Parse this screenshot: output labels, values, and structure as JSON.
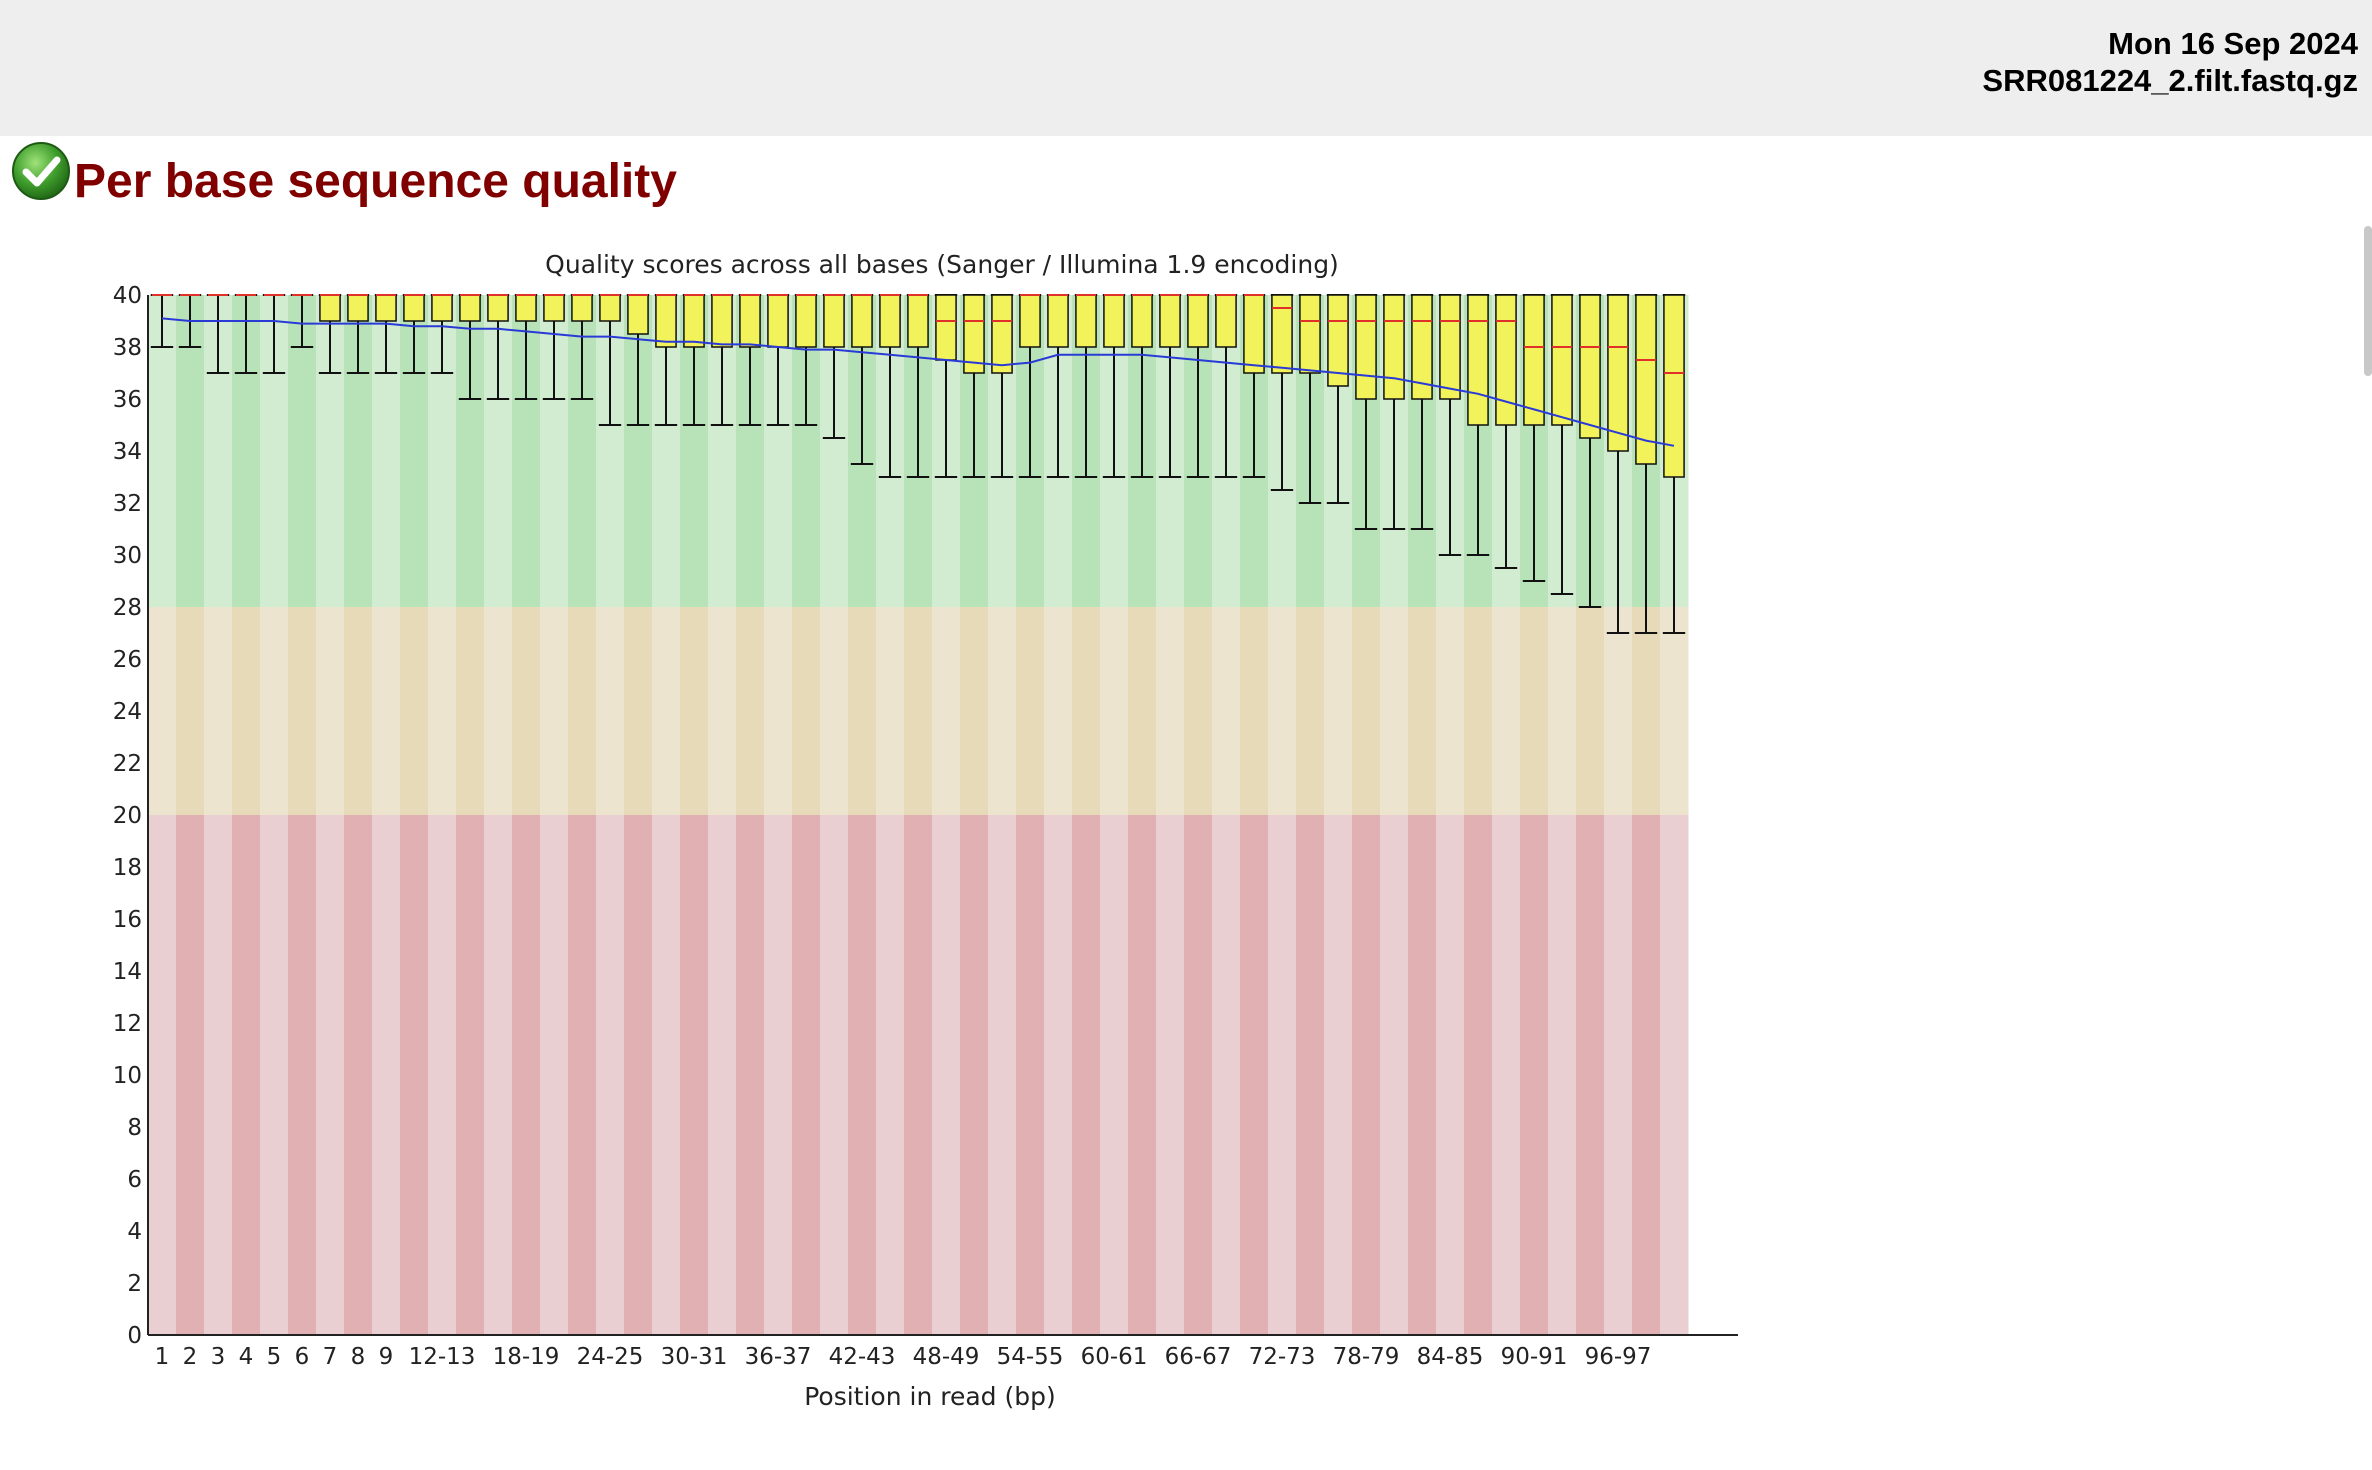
{
  "header": {
    "date": "Mon 16 Sep 2024",
    "filename": "SRR081224_2.filt.fastq.gz"
  },
  "module": {
    "title": "Per base sequence quality",
    "status_icon": "pass-check-icon"
  },
  "colors": {
    "header_bg": "#eeeeee",
    "title": "#800000",
    "zone_good": "#b8e3b8",
    "zone_good_alt": "#d1ecd1",
    "zone_warn": "#e6dab8",
    "zone_warn_alt": "#ece4cf",
    "zone_bad": "#e0b0b2",
    "zone_bad_alt": "#e9cfd1",
    "box_fill": "#f2f25a",
    "median": "#e0302a",
    "mean_line": "#2a3ad6"
  },
  "chart_data": {
    "type": "box",
    "title": "Quality scores across all bases (Sanger / Illumina 1.9 encoding)",
    "xlabel": "Position in read (bp)",
    "ylabel": "",
    "ylim": [
      0,
      40
    ],
    "yticks": [
      0,
      2,
      4,
      6,
      8,
      10,
      12,
      14,
      16,
      18,
      20,
      22,
      24,
      26,
      28,
      30,
      32,
      34,
      36,
      38,
      40
    ],
    "zones": {
      "good": [
        28,
        40
      ],
      "warn": [
        20,
        28
      ],
      "bad": [
        0,
        20
      ]
    },
    "categories": [
      "1",
      "2",
      "3",
      "4",
      "5",
      "6",
      "7",
      "8",
      "9",
      "10-11",
      "12-13",
      "14-15",
      "16-17",
      "18-19",
      "20-21",
      "22-23",
      "24-25",
      "26-27",
      "28-29",
      "30-31",
      "32-33",
      "34-35",
      "36-37",
      "38-39",
      "40-41",
      "42-43",
      "44-45",
      "46-47",
      "48-49",
      "50-51",
      "52-53",
      "54-55",
      "56-57",
      "58-59",
      "60-61",
      "62-63",
      "64-65",
      "66-67",
      "68-69",
      "70-71",
      "72-73",
      "74-75",
      "76-77",
      "78-79",
      "80-81",
      "82-83",
      "84-85",
      "86-87",
      "88-89",
      "90-91",
      "92-93",
      "94-95",
      "96-97",
      "98-99",
      "100-101"
    ],
    "x_tick_labels": [
      "1",
      "2",
      "3",
      "4",
      "5",
      "6",
      "7",
      "8",
      "9",
      "12-13",
      "18-19",
      "24-25",
      "30-31",
      "36-37",
      "42-43",
      "48-49",
      "54-55",
      "60-61",
      "66-67",
      "72-73",
      "78-79",
      "84-85",
      "90-91",
      "96-97"
    ],
    "series": [
      {
        "stat": "median",
        "values": [
          40,
          40,
          40,
          40,
          40,
          40,
          40,
          40,
          40,
          40,
          40,
          40,
          40,
          40,
          40,
          40,
          40,
          40,
          40,
          40,
          40,
          40,
          40,
          40,
          40,
          40,
          40,
          40,
          39,
          39,
          39,
          40,
          40,
          40,
          40,
          40,
          40,
          40,
          40,
          40,
          39.5,
          39,
          39,
          39,
          39,
          39,
          39,
          39,
          39,
          38,
          38,
          38,
          38,
          37.5,
          37
        ]
      },
      {
        "stat": "q1",
        "values": [
          40,
          40,
          40,
          40,
          40,
          40,
          39,
          39,
          39,
          39,
          39,
          39,
          39,
          39,
          39,
          39,
          39,
          38.5,
          38,
          38,
          38,
          38,
          38,
          38,
          38,
          38,
          38,
          38,
          37.5,
          37,
          37,
          38,
          38,
          38,
          38,
          38,
          38,
          38,
          38,
          37,
          37,
          37,
          36.5,
          36,
          36,
          36,
          36,
          35,
          35,
          35,
          35,
          34.5,
          34,
          33.5,
          33
        ]
      },
      {
        "stat": "q3",
        "values": [
          40,
          40,
          40,
          40,
          40,
          40,
          40,
          40,
          40,
          40,
          40,
          40,
          40,
          40,
          40,
          40,
          40,
          40,
          40,
          40,
          40,
          40,
          40,
          40,
          40,
          40,
          40,
          40,
          40,
          40,
          40,
          40,
          40,
          40,
          40,
          40,
          40,
          40,
          40,
          40,
          40,
          40,
          40,
          40,
          40,
          40,
          40,
          40,
          40,
          40,
          40,
          40,
          40,
          40,
          40
        ]
      },
      {
        "stat": "p10",
        "values": [
          38,
          38,
          37,
          37,
          37,
          38,
          37,
          37,
          37,
          37,
          37,
          36,
          36,
          36,
          36,
          36,
          35,
          35,
          35,
          35,
          35,
          35,
          35,
          35,
          34.5,
          33.5,
          33,
          33,
          33,
          33,
          33,
          33,
          33,
          33,
          33,
          33,
          33,
          33,
          33,
          33,
          32.5,
          32,
          32,
          31,
          31,
          31,
          30,
          30,
          29.5,
          29,
          28.5,
          28,
          27,
          27,
          27
        ]
      },
      {
        "stat": "p90",
        "values": [
          40,
          40,
          40,
          40,
          40,
          40,
          40,
          40,
          40,
          40,
          40,
          40,
          40,
          40,
          40,
          40,
          40,
          40,
          40,
          40,
          40,
          40,
          40,
          40,
          40,
          40,
          40,
          40,
          40,
          40,
          40,
          40,
          40,
          40,
          40,
          40,
          40,
          40,
          40,
          40,
          40,
          40,
          40,
          40,
          40,
          40,
          40,
          40,
          40,
          40,
          40,
          40,
          40,
          40,
          40
        ]
      },
      {
        "stat": "mean",
        "values": [
          39.1,
          39.0,
          39.0,
          39.0,
          39.0,
          38.9,
          38.9,
          38.9,
          38.9,
          38.8,
          38.8,
          38.7,
          38.7,
          38.6,
          38.5,
          38.4,
          38.4,
          38.3,
          38.2,
          38.2,
          38.1,
          38.1,
          38.0,
          37.9,
          37.9,
          37.8,
          37.7,
          37.6,
          37.5,
          37.4,
          37.3,
          37.4,
          37.7,
          37.7,
          37.7,
          37.7,
          37.6,
          37.5,
          37.4,
          37.3,
          37.2,
          37.1,
          37.0,
          36.9,
          36.8,
          36.6,
          36.4,
          36.2,
          35.9,
          35.6,
          35.3,
          35.0,
          34.7,
          34.4,
          34.2
        ]
      }
    ],
    "grid": false
  }
}
